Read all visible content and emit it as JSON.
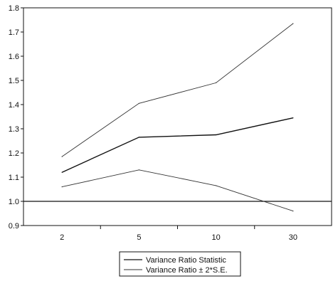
{
  "chart_data": {
    "type": "line",
    "categories": [
      "2",
      "5",
      "10",
      "30"
    ],
    "series": [
      {
        "name": "Variance Ratio Statistic",
        "values": [
          1.12,
          1.265,
          1.275,
          1.345
        ],
        "style": "solid"
      },
      {
        "name": "Variance Ratio ± 2*S.E.",
        "values": [
          1.185,
          1.405,
          1.49,
          1.735
        ],
        "style": "band-upper"
      },
      {
        "name": "",
        "values": [
          1.06,
          1.13,
          1.065,
          0.96
        ],
        "style": "band-lower"
      }
    ],
    "reference_line": 1.0,
    "ylim": [
      0.9,
      1.8
    ],
    "yticks": [
      "0.9",
      "1.0",
      "1.1",
      "1.2",
      "1.3",
      "1.4",
      "1.5",
      "1.6",
      "1.7",
      "1.8"
    ],
    "legend": {
      "position": "bottom-center",
      "entries": [
        "Variance Ratio Statistic",
        "Variance Ratio ± 2*S.E."
      ]
    },
    "grid": false,
    "colors": {
      "line": "#111111",
      "band": "#333333"
    }
  }
}
